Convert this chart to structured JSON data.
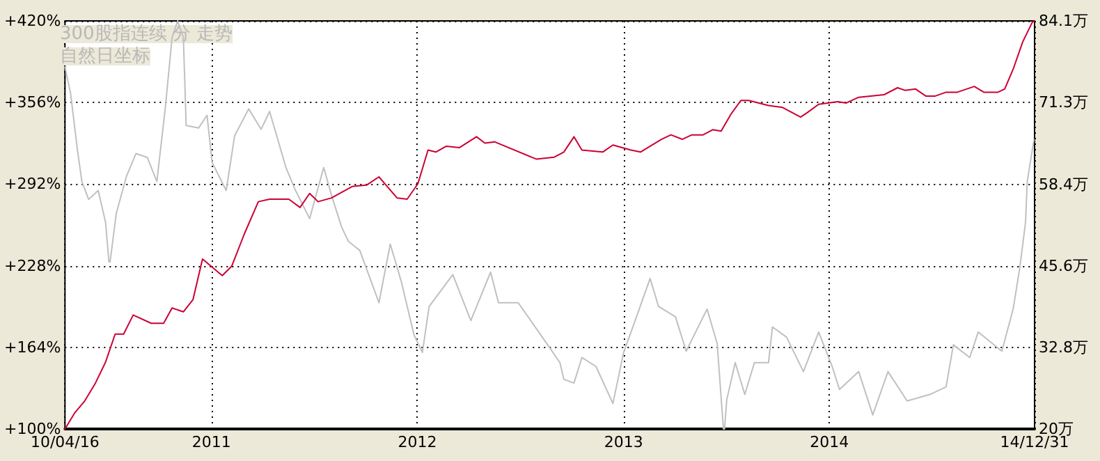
{
  "chart_data": {
    "type": "line",
    "annotations": [
      "300股指连续 分 走势",
      "自然日坐标"
    ],
    "xlim": [
      "2010-04-16",
      "2014-12-31"
    ],
    "xticks": [
      {
        "value": "2010-04-16",
        "label": "10/04/16"
      },
      {
        "value": "2011-01-01",
        "label": "2011"
      },
      {
        "value": "2012-01-01",
        "label": "2012"
      },
      {
        "value": "2013-01-01",
        "label": "2013"
      },
      {
        "value": "2014-01-01",
        "label": "2014"
      },
      {
        "value": "2014-12-31",
        "label": "14/12/31"
      }
    ],
    "ylim": [
      100,
      420
    ],
    "yticks": [
      {
        "value": 100,
        "label": "+100%"
      },
      {
        "value": 164,
        "label": "+164%"
      },
      {
        "value": 228,
        "label": "+228%"
      },
      {
        "value": 292,
        "label": "+292%"
      },
      {
        "value": 356,
        "label": "+356%"
      },
      {
        "value": 420,
        "label": "+420%"
      }
    ],
    "y2lim": [
      20,
      84.1
    ],
    "y2ticks": [
      {
        "value": 20,
        "label": "20万"
      },
      {
        "value": 32.8,
        "label": "32.8万"
      },
      {
        "value": 45.6,
        "label": "45.6万"
      },
      {
        "value": 58.4,
        "label": "58.4万"
      },
      {
        "value": 71.3,
        "label": "71.3万"
      },
      {
        "value": 84.1,
        "label": "84.1万"
      }
    ],
    "grid": true,
    "marker": "none",
    "line_style": "solid",
    "series": [
      {
        "color": "#c0c0c0",
        "x": [
          "2010-04-16",
          "2010-04-26",
          "2010-05-08",
          "2010-05-16",
          "2010-05-28",
          "2010-06-14",
          "2010-06-27",
          "2010-07-03",
          "2010-07-05",
          "2010-07-16",
          "2010-08-03",
          "2010-08-20",
          "2010-09-09",
          "2010-09-26",
          "2010-10-11",
          "2010-10-23",
          "2010-11-02",
          "2010-11-12",
          "2010-11-17",
          "2010-12-09",
          "2010-12-24",
          "2011-01-02",
          "2011-01-27",
          "2011-02-11",
          "2011-03-08",
          "2011-03-30",
          "2011-04-14",
          "2011-05-13",
          "2011-05-30",
          "2011-06-24",
          "2011-07-19",
          "2011-08-02",
          "2011-08-20",
          "2011-09-01",
          "2011-09-21",
          "2011-10-25",
          "2011-11-14",
          "2011-12-04",
          "2011-12-26",
          "2012-01-10",
          "2012-01-22",
          "2012-03-04",
          "2012-04-05",
          "2012-05-10",
          "2012-05-24",
          "2012-06-28",
          "2012-08-24",
          "2012-09-10",
          "2012-09-17",
          "2012-10-05",
          "2012-10-19",
          "2012-11-13",
          "2012-12-13",
          "2013-01-01",
          "2013-01-19",
          "2013-02-17",
          "2013-03-04",
          "2013-04-03",
          "2013-04-22",
          "2013-05-29",
          "2013-06-16",
          "2013-06-27",
          "2013-06-29",
          "2013-07-03",
          "2013-07-18",
          "2013-08-04",
          "2013-08-21",
          "2013-09-15",
          "2013-09-22",
          "2013-10-17",
          "2013-11-16",
          "2013-12-13",
          "2014-01-06",
          "2014-01-19",
          "2014-02-22",
          "2014-03-19",
          "2014-04-15",
          "2014-05-19",
          "2014-06-28",
          "2014-07-27",
          "2014-08-09",
          "2014-09-07",
          "2014-09-22",
          "2014-11-03",
          "2014-11-23",
          "2014-12-05",
          "2014-12-15",
          "2014-12-18",
          "2014-12-30"
        ],
        "values": [
          384,
          363,
          319,
          294,
          280,
          287,
          262,
          231,
          231,
          269,
          298,
          316,
          313,
          294,
          352,
          407,
          420,
          407,
          338,
          336,
          346,
          309,
          287,
          330,
          351,
          335,
          349,
          305,
          287,
          265,
          305,
          283,
          258,
          247,
          240,
          199,
          245,
          215,
          174,
          160,
          196,
          221,
          185,
          223,
          199,
          199,
          163,
          152,
          139,
          136,
          156,
          149,
          120,
          160,
          182,
          218,
          196,
          188,
          161,
          194,
          167,
          100,
          100,
          123,
          152,
          127,
          152,
          152,
          180,
          172,
          145,
          176,
          149,
          131,
          145,
          111,
          145,
          122,
          127,
          133,
          166,
          156,
          176,
          161,
          194,
          227,
          262,
          294,
          327
        ]
      },
      {
        "color": "#cc0033",
        "axis": "y2",
        "x": [
          "2010-04-16",
          "2010-05-03",
          "2010-05-21",
          "2010-06-09",
          "2010-06-27",
          "2010-07-14",
          "2010-07-29",
          "2010-08-15",
          "2010-09-16",
          "2010-10-08",
          "2010-10-23",
          "2010-11-12",
          "2010-11-29",
          "2010-12-16",
          "2011-01-20",
          "2011-02-06",
          "2011-02-28",
          "2011-03-25",
          "2011-04-14",
          "2011-05-18",
          "2011-06-07",
          "2011-06-24",
          "2011-07-09",
          "2011-08-02",
          "2011-09-08",
          "2011-10-03",
          "2011-10-25",
          "2011-11-26",
          "2011-12-14",
          "2012-01-02",
          "2012-01-20",
          "2012-02-03",
          "2012-02-21",
          "2012-03-16",
          "2012-04-15",
          "2012-04-30",
          "2012-05-17",
          "2012-07-30",
          "2012-08-31",
          "2012-09-17",
          "2012-10-05",
          "2012-10-19",
          "2012-11-25",
          "2012-12-13",
          "2013-01-14",
          "2013-01-31",
          "2013-03-09",
          "2013-03-26",
          "2013-04-15",
          "2013-05-02",
          "2013-05-22",
          "2013-06-08",
          "2013-06-23",
          "2013-07-10",
          "2013-07-28",
          "2013-08-11",
          "2013-09-15",
          "2013-10-10",
          "2013-11-11",
          "2013-11-23",
          "2013-12-13",
          "2014-01-16",
          "2014-01-31",
          "2014-02-22",
          "2014-04-08",
          "2014-05-02",
          "2014-05-15",
          "2014-06-03",
          "2014-06-21",
          "2014-07-08",
          "2014-07-27",
          "2014-08-16",
          "2014-09-15",
          "2014-10-02",
          "2014-10-27",
          "2014-11-08",
          "2014-11-23",
          "2014-12-10",
          "2014-12-27",
          "2014-12-31"
        ],
        "values": [
          20.0,
          22.5,
          24.4,
          27.2,
          30.5,
          34.9,
          34.9,
          37.9,
          36.6,
          36.6,
          39.0,
          38.4,
          40.3,
          46.7,
          44.1,
          45.6,
          50.6,
          55.7,
          56.1,
          56.1,
          54.8,
          57.0,
          55.7,
          56.3,
          58.1,
          58.3,
          59.6,
          56.3,
          56.1,
          58.5,
          63.8,
          63.5,
          64.4,
          64.2,
          65.9,
          64.9,
          65.1,
          62.4,
          62.7,
          63.5,
          65.9,
          63.8,
          63.5,
          64.6,
          63.8,
          63.5,
          65.5,
          66.2,
          65.5,
          66.2,
          66.2,
          67.0,
          66.8,
          69.4,
          71.6,
          71.6,
          70.8,
          70.5,
          69.0,
          69.7,
          71.0,
          71.4,
          71.2,
          72.1,
          72.5,
          73.6,
          73.2,
          73.4,
          72.3,
          72.3,
          72.9,
          72.9,
          73.8,
          72.9,
          72.9,
          73.4,
          76.5,
          80.8,
          83.9,
          84.1
        ]
      }
    ]
  }
}
